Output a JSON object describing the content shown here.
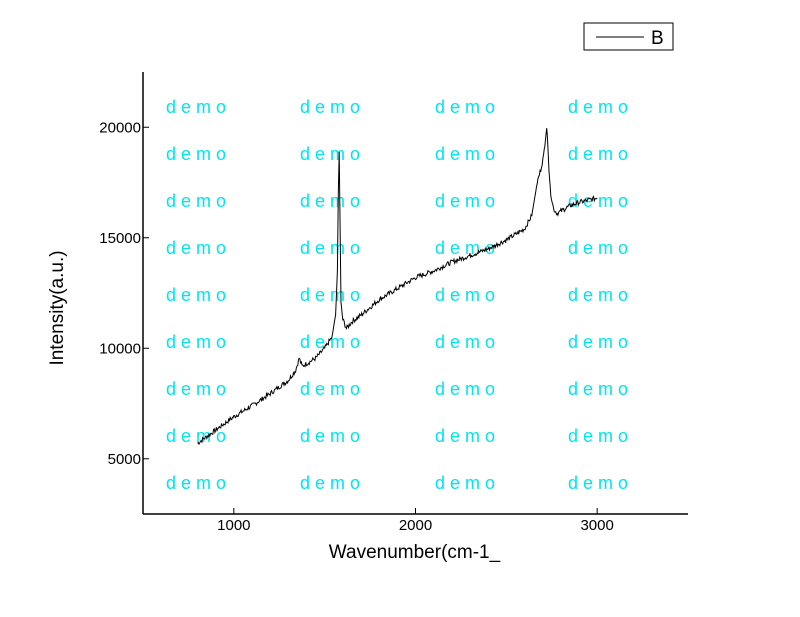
{
  "chart_data": {
    "type": "line",
    "title": "",
    "xlabel": "Wavenumber(cm-1_",
    "ylabel": "Intensity(a.u.)",
    "xlim": [
      500,
      3500
    ],
    "ylim": [
      2500,
      22500
    ],
    "x_ticks": [
      1000,
      2000,
      3000
    ],
    "x_tick_labels": [
      "1000",
      "2000",
      "3000"
    ],
    "y_ticks": [
      5000,
      10000,
      15000,
      20000
    ],
    "y_tick_labels": [
      "5000",
      "10000",
      "15000",
      "20000"
    ],
    "grid": false,
    "legend": {
      "position": "top-right",
      "entries": [
        "B"
      ]
    },
    "watermark": "demo",
    "series": [
      {
        "name": "B",
        "color": "#000000",
        "x": [
          800,
          900,
          1000,
          1100,
          1200,
          1300,
          1340,
          1360,
          1375,
          1400,
          1450,
          1500,
          1540,
          1560,
          1570,
          1575,
          1580,
          1585,
          1590,
          1600,
          1620,
          1650,
          1700,
          1800,
          1900,
          2000,
          2100,
          2200,
          2300,
          2400,
          2500,
          2600,
          2640,
          2670,
          2690,
          2705,
          2715,
          2722,
          2728,
          2735,
          2745,
          2760,
          2780,
          2800,
          2850,
          2900,
          3000
        ],
        "y": [
          5700,
          6300,
          6900,
          7400,
          7950,
          8550,
          9000,
          9550,
          9200,
          9300,
          9550,
          10000,
          10500,
          11500,
          13500,
          17000,
          18900,
          15500,
          12000,
          11300,
          10900,
          11200,
          11500,
          12200,
          12700,
          13200,
          13500,
          13900,
          14200,
          14500,
          14900,
          15400,
          16000,
          17500,
          18100,
          18700,
          19500,
          20000,
          19200,
          18000,
          17000,
          16300,
          16100,
          16200,
          16450,
          16600,
          16800
        ]
      }
    ]
  }
}
